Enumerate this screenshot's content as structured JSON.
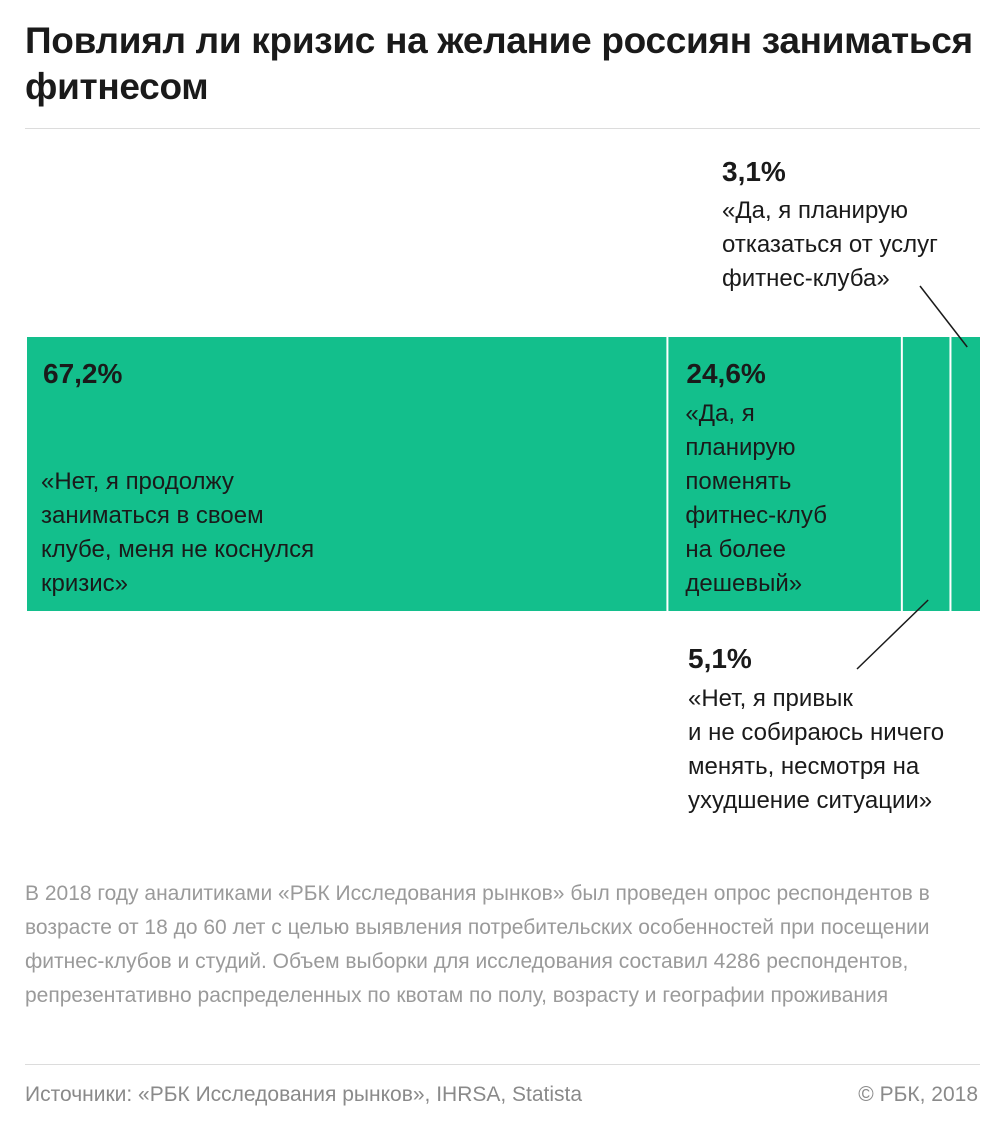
{
  "title": "Повлиял ли кризис на желание россиян заниматься фитнесом",
  "colors": {
    "bar": "#13bf8c",
    "separator": "#ffffff",
    "leader": "#1a1a1a"
  },
  "chart_data": {
    "type": "bar",
    "orientation": "horizontal-stacked",
    "grid": false,
    "legend": "none",
    "xlim": [
      0,
      100
    ],
    "categories": [
      "«Нет, я продолжу заниматься в своем клубе, меня не коснулся кризис»",
      "«Да, я планирую поменять фитнес-клуб на более дешевый»",
      "«Нет, я привык и не собираюсь ничего менять, несмотря на ухудшение ситуации»",
      "«Да, я планирую отказаться от услуг фитнес-клуба»"
    ],
    "values": [
      67.2,
      24.6,
      5.1,
      3.1
    ],
    "labels": [
      "67,2%",
      "24,6%",
      "5,1%",
      "3,1%"
    ],
    "descriptions": [
      [
        "«Нет, я продолжу",
        "заниматься в своем",
        "клубе, меня не коснулся",
        "кризис»"
      ],
      [
        "«Да, я",
        "планирую",
        "поменять",
        "фитнес-клуб",
        "на более",
        "дешевый»"
      ],
      [
        "«Нет, я привык",
        "и не собираюсь ничего",
        "менять, несмотря на",
        "ухудшение ситуации»"
      ],
      [
        "«Да, я планирую",
        "отказаться от услуг",
        "фитнес-клуба»"
      ]
    ]
  },
  "note": "В 2018 году аналитиками «РБК Исследования рынков» был проведен опрос респондентов в возрасте от 18 до 60 лет с целью выявления потребительских особенностей при посещении фитнес-клубов и студий. Объем выборки для исследования составил 4286 респондентов, репрезентативно распределенных по квотам по полу, возрасту и географии проживания",
  "footer": {
    "sources": "Источники: «РБК Исследования рынков», IHRSA, Statista",
    "copyright": "© РБК, 2018"
  }
}
